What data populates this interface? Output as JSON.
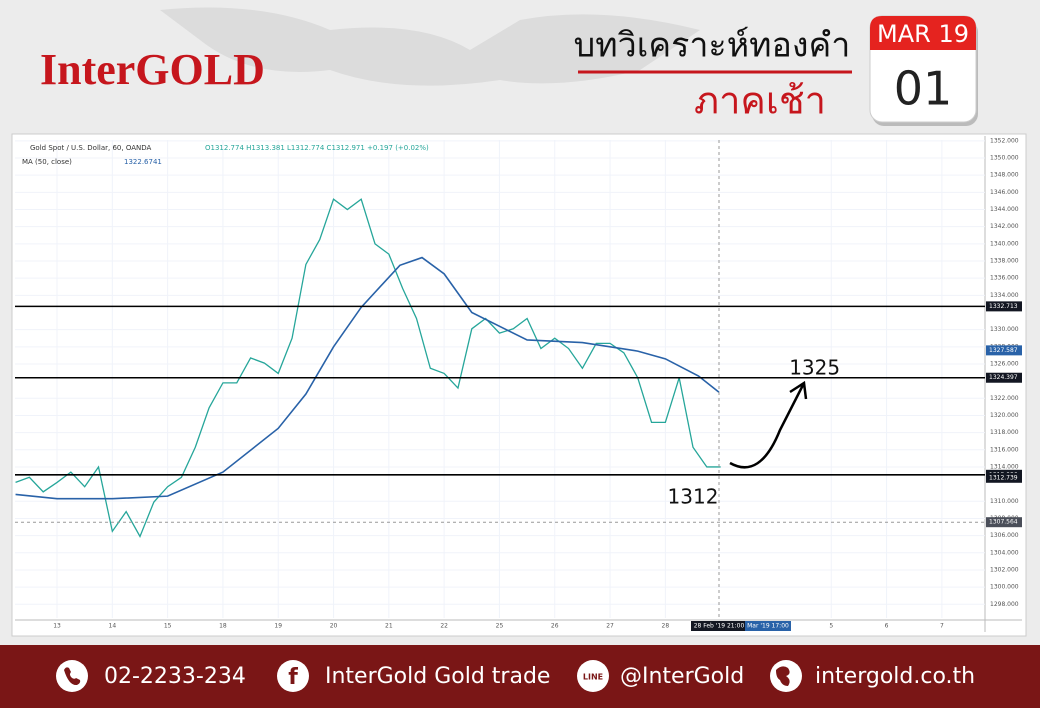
{
  "header": {
    "brand": "InterGOLD",
    "title": "บทวิเคราะห์ทองคำ",
    "subtitle": "ภาคเช้า",
    "month": "MAR 19",
    "day": "01"
  },
  "chart_data": {
    "type": "line",
    "info": "Gold Spot / U.S. Dollar, 60, OANDA",
    "ohlc": "O1312.774 H1313.381 L1312.774 C1312.971 +0.197 (+0.02%)",
    "ma_label": "MA (50, close)",
    "ma_value": "1322.6741",
    "xlim": [
      -0.76,
      16.78
    ],
    "ylim": [
      1296.4,
      1352.1
    ],
    "xticks": [
      {
        "value": 0,
        "label": "13"
      },
      {
        "value": 1,
        "label": "14"
      },
      {
        "value": 2,
        "label": "15"
      },
      {
        "value": 3,
        "label": "18"
      },
      {
        "value": 4,
        "label": "19"
      },
      {
        "value": 5,
        "label": "20"
      },
      {
        "value": 6,
        "label": "21"
      },
      {
        "value": 7,
        "label": "22"
      },
      {
        "value": 8,
        "label": "25"
      },
      {
        "value": 9,
        "label": "26"
      },
      {
        "value": 10,
        "label": "27"
      },
      {
        "value": 11,
        "label": "28"
      },
      {
        "value": 14,
        "label": "5"
      },
      {
        "value": 15,
        "label": "6"
      },
      {
        "value": 16,
        "label": "7"
      }
    ],
    "yticks": [
      {
        "value": 1298,
        "label": "1298.000"
      },
      {
        "value": 1300,
        "label": "1300.000"
      },
      {
        "value": 1302,
        "label": "1302.000"
      },
      {
        "value": 1304,
        "label": "1304.000"
      },
      {
        "value": 1306,
        "label": "1306.000"
      },
      {
        "value": 1308,
        "label": "1308.000"
      },
      {
        "value": 1310,
        "label": "1310.000"
      },
      {
        "value": 1314,
        "label": "1314.000"
      },
      {
        "value": 1316,
        "label": "1316.000"
      },
      {
        "value": 1318,
        "label": "1318.000"
      },
      {
        "value": 1320,
        "label": "1320.000"
      },
      {
        "value": 1322,
        "label": "1322.000"
      },
      {
        "value": 1326,
        "label": "1326.000"
      },
      {
        "value": 1328,
        "label": "1328.000"
      },
      {
        "value": 1330,
        "label": "1330.000"
      },
      {
        "value": 1334,
        "label": "1334.000"
      },
      {
        "value": 1336,
        "label": "1336.000"
      },
      {
        "value": 1338,
        "label": "1338.000"
      },
      {
        "value": 1340,
        "label": "1340.000"
      },
      {
        "value": 1342,
        "label": "1342.000"
      },
      {
        "value": 1344,
        "label": "1344.000"
      },
      {
        "value": 1346,
        "label": "1346.000"
      },
      {
        "value": 1348,
        "label": "1348.000"
      },
      {
        "value": 1350,
        "label": "1350.000"
      },
      {
        "value": 1352,
        "label": "1352.000"
      }
    ],
    "grid": true,
    "series": [
      {
        "name": "Gold Spot",
        "color": "#26a69a",
        "x": [
          -0.75,
          -0.5,
          -0.25,
          0,
          0.25,
          0.5,
          0.75,
          1,
          1.25,
          1.5,
          1.75,
          2,
          2.25,
          2.5,
          2.75,
          3,
          3.25,
          3.5,
          3.75,
          4,
          4.25,
          4.5,
          4.75,
          5,
          5.25,
          5.5,
          5.75,
          6,
          6.25,
          6.5,
          6.75,
          7,
          7.25,
          7.5,
          7.75,
          8,
          8.25,
          8.5,
          8.75,
          9,
          9.25,
          9.5,
          9.75,
          10,
          10.25,
          10.5,
          10.75,
          11,
          11.25,
          11.5,
          11.75,
          12
        ],
        "values": [
          1312.2,
          1312.8,
          1311.1,
          1312.2,
          1313.4,
          1311.7,
          1314.0,
          1306.5,
          1308.8,
          1305.9,
          1309.9,
          1311.7,
          1312.8,
          1316.3,
          1320.9,
          1323.8,
          1323.8,
          1326.7,
          1326.1,
          1324.9,
          1329.0,
          1337.6,
          1340.5,
          1345.2,
          1344.0,
          1345.2,
          1340.0,
          1338.8,
          1334.8,
          1331.3,
          1325.5,
          1324.9,
          1323.2,
          1330.1,
          1331.3,
          1329.6,
          1330.1,
          1331.3,
          1327.8,
          1329.0,
          1327.8,
          1325.5,
          1328.4,
          1328.4,
          1327.3,
          1324.4,
          1319.2,
          1319.2,
          1324.4,
          1316.3,
          1314.0,
          1314.0
        ]
      },
      {
        "name": "MA (50, close)",
        "color": "#2962a8",
        "x": [
          -0.75,
          0,
          1,
          2,
          3,
          4,
          4.5,
          5,
          5.5,
          6.2,
          6.6,
          7.0,
          7.5,
          8.5,
          9.5,
          10.5,
          11,
          11.6,
          11.97
        ],
        "values": [
          1310.8,
          1310.3,
          1310.3,
          1310.6,
          1313.4,
          1318.5,
          1322.5,
          1328.0,
          1332.6,
          1337.5,
          1338.4,
          1336.5,
          1332.0,
          1328.8,
          1328.5,
          1327.5,
          1326.6,
          1324.6,
          1322.7
        ]
      }
    ],
    "levels": [
      1332.713,
      1324.397,
      1313.086
    ],
    "price_labels": [
      {
        "value": 1327.587,
        "color": "#2962a8"
      },
      {
        "value": 1312.739,
        "color": "#131722"
      },
      {
        "value": 1307.564,
        "color": "#4a4e59"
      }
    ],
    "crosshair": {
      "x": 11.97,
      "label": "28 Feb '19  21:00",
      "next": "Mar '19  17:00"
    },
    "annotations": [
      {
        "text": "1325",
        "x": 13.7,
        "y": 1325.4
      },
      {
        "text": "1312",
        "x": 11.5,
        "y": 1310.4
      }
    ]
  },
  "footer": {
    "phone": "02-2233-234",
    "facebook": "InterGold Gold trade",
    "line": "@InterGold",
    "web": "intergold.co.th"
  }
}
